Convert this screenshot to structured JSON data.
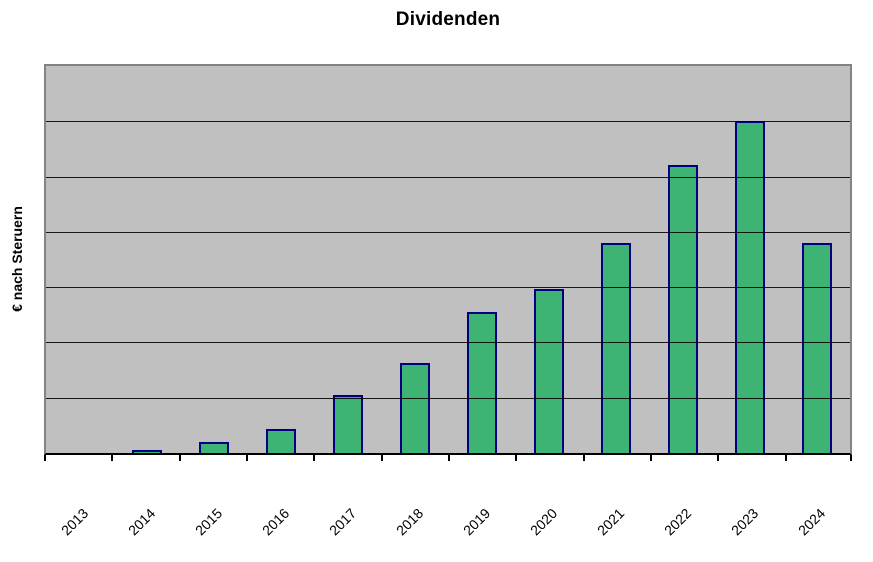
{
  "chart_data": {
    "type": "bar",
    "title": "Dividenden",
    "ylabel": "€ nach Steruern",
    "xlabel": "",
    "categories": [
      "2013",
      "2014",
      "2015",
      "2016",
      "2017",
      "2018",
      "2019",
      "2020",
      "2021",
      "2022",
      "2023",
      "2024"
    ],
    "values": [
      0,
      0.05,
      0.2,
      0.43,
      1.05,
      1.63,
      2.55,
      2.97,
      3.8,
      5.21,
      6.0,
      3.8
    ],
    "ylim": [
      0,
      7
    ],
    "y_major_unit": 1,
    "y_tick_labels": "none",
    "grid": "horizontal major gridlines drawn over bars",
    "legend": "none",
    "x_tick_style": "tick marks at category boundaries, labels rotated 45 degrees",
    "colors": {
      "page_background": "#ffffff",
      "plot_background": "#c0c0c0",
      "plot_border": "#848284",
      "bar_fill": "#3db374",
      "bar_border": "#000080",
      "gridline": "#000000",
      "axis": "#000000",
      "text": "#000000"
    }
  }
}
